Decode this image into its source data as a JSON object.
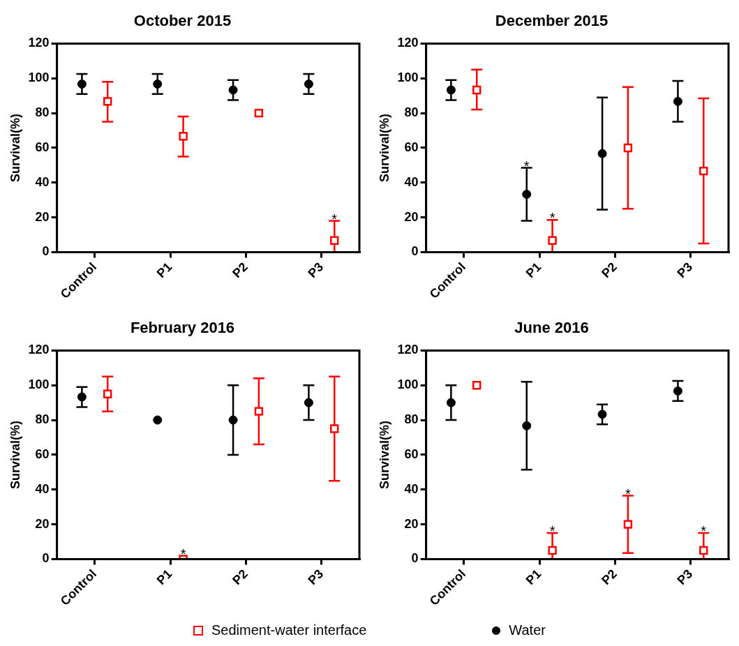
{
  "chart_data": [
    {
      "type": "scatter",
      "title": "October 2015",
      "ylabel": "Survival(%)",
      "categories": [
        "Control",
        "P1",
        "P2",
        "P3"
      ],
      "ylim": [
        0,
        120
      ],
      "yticks": [
        0,
        20,
        40,
        60,
        80,
        100,
        120
      ],
      "legend": "bottom",
      "series": [
        {
          "name": "Sediment-water interface",
          "color": "#ff0000",
          "marker": "square",
          "values": [
            86.7,
            66.7,
            80,
            6.7
          ],
          "errors": [
            [
              75,
              98
            ],
            [
              55,
              78
            ],
            null,
            [
              0,
              18
            ]
          ],
          "value_labels": [
            null,
            null,
            null,
            "*"
          ]
        },
        {
          "name": "Water",
          "color": "#000000",
          "marker": "circle",
          "values": [
            96.7,
            96.7,
            93.3,
            96.7
          ],
          "errors": [
            [
              91,
              102.5
            ],
            [
              91,
              102.5
            ],
            [
              87.5,
              99
            ],
            [
              91,
              102.5
            ]
          ]
        }
      ]
    },
    {
      "type": "scatter",
      "title": "December 2015",
      "ylabel": "Survival(%)",
      "categories": [
        "Control",
        "P1",
        "P2",
        "P3"
      ],
      "ylim": [
        0,
        120
      ],
      "yticks": [
        0,
        20,
        40,
        60,
        80,
        100,
        120
      ],
      "series": [
        {
          "color": "#ff0000",
          "marker": "square",
          "values": [
            93.3,
            6.7,
            60,
            46.7
          ],
          "errors": [
            [
              82,
              105
            ],
            [
              0,
              18.5
            ],
            [
              25,
              95
            ],
            [
              5,
              88.5
            ]
          ],
          "value_labels": [
            null,
            "*",
            null,
            null
          ]
        },
        {
          "color": "#000000",
          "marker": "circle",
          "values": [
            93.3,
            33.3,
            56.7,
            86.7
          ],
          "errors": [
            [
              87.5,
              99
            ],
            [
              18,
              48.5
            ],
            [
              24.5,
              89
            ],
            [
              75,
              98.5
            ]
          ],
          "value_labels": [
            null,
            "*",
            null,
            null
          ]
        }
      ]
    },
    {
      "type": "scatter",
      "title": "February 2016",
      "ylabel": "Survival(%)",
      "categories": [
        "Control",
        "P1",
        "P2",
        "P3"
      ],
      "ylim": [
        0,
        120
      ],
      "yticks": [
        0,
        20,
        40,
        60,
        80,
        100,
        120
      ],
      "series": [
        {
          "color": "#ff0000",
          "marker": "square",
          "values": [
            95,
            0,
            85,
            75
          ],
          "errors": [
            [
              85,
              105
            ],
            null,
            [
              66,
              104
            ],
            [
              45,
              105
            ]
          ],
          "value_labels": [
            null,
            "*",
            null,
            null
          ]
        },
        {
          "color": "#000000",
          "marker": "circle",
          "values": [
            93.3,
            80,
            80,
            90
          ],
          "errors": [
            [
              87.5,
              99
            ],
            null,
            [
              60,
              100
            ],
            [
              80,
              100
            ]
          ]
        }
      ]
    },
    {
      "type": "scatter",
      "title": "June 2016",
      "ylabel": "Survival(%)",
      "categories": [
        "Control",
        "P1",
        "P2",
        "P3"
      ],
      "ylim": [
        0,
        120
      ],
      "yticks": [
        0,
        20,
        40,
        60,
        80,
        100,
        120
      ],
      "series": [
        {
          "color": "#ff0000",
          "marker": "square",
          "values": [
            100,
            5,
            20,
            5
          ],
          "errors": [
            null,
            [
              0,
              15
            ],
            [
              3.5,
              36.5
            ],
            [
              0,
              15
            ]
          ],
          "value_labels": [
            null,
            "*",
            "*",
            "*"
          ]
        },
        {
          "color": "#000000",
          "marker": "circle",
          "values": [
            90,
            76.7,
            83.3,
            96.7
          ],
          "errors": [
            [
              80,
              100
            ],
            [
              51.5,
              102
            ],
            [
              77.5,
              89
            ],
            [
              91,
              102.5
            ]
          ]
        }
      ]
    }
  ]
}
